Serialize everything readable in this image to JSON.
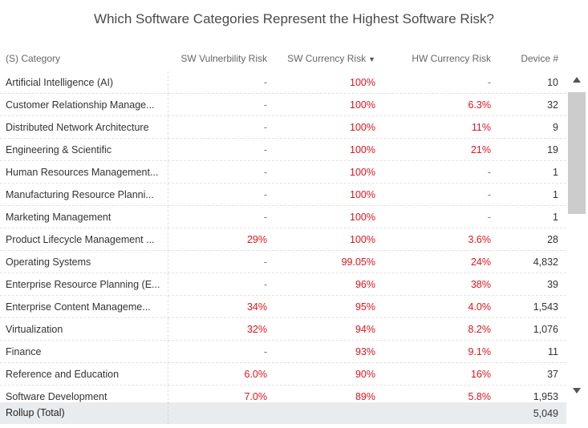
{
  "title": "Which Software Categories Represent the Highest Software Risk?",
  "columns": {
    "category": "(S) Category",
    "sw_vuln": "SW Vulnerbility Risk",
    "sw_currency": "SW Currency Risk",
    "hw_currency": "HW Currency Risk",
    "device": "Device #"
  },
  "rows": [
    {
      "category": "Artificial Intelligence (AI)",
      "sw_vuln": "-",
      "sw_currency": "100%",
      "hw_currency": "-",
      "device": "10"
    },
    {
      "category": "Customer Relationship Manage...",
      "sw_vuln": "-",
      "sw_currency": "100%",
      "hw_currency": "6.3%",
      "device": "32"
    },
    {
      "category": "Distributed Network Architecture",
      "sw_vuln": "-",
      "sw_currency": "100%",
      "hw_currency": "11%",
      "device": "9"
    },
    {
      "category": "Engineering & Scientific",
      "sw_vuln": "-",
      "sw_currency": "100%",
      "hw_currency": "21%",
      "device": "19"
    },
    {
      "category": "Human Resources Management...",
      "sw_vuln": "-",
      "sw_currency": "100%",
      "hw_currency": "-",
      "device": "1"
    },
    {
      "category": "Manufacturing Resource Planni...",
      "sw_vuln": "-",
      "sw_currency": "100%",
      "hw_currency": "-",
      "device": "1"
    },
    {
      "category": "Marketing Management",
      "sw_vuln": "-",
      "sw_currency": "100%",
      "hw_currency": "-",
      "device": "1"
    },
    {
      "category": "Product Lifecycle Management ...",
      "sw_vuln": "29%",
      "sw_currency": "100%",
      "hw_currency": "3.6%",
      "device": "28"
    },
    {
      "category": "Operating Systems",
      "sw_vuln": "-",
      "sw_currency": "99.05%",
      "hw_currency": "24%",
      "device": "4,832"
    },
    {
      "category": "Enterprise Resource Planning (E...",
      "sw_vuln": "-",
      "sw_currency": "96%",
      "hw_currency": "38%",
      "device": "39"
    },
    {
      "category": "Enterprise Content Manageme...",
      "sw_vuln": "34%",
      "sw_currency": "95%",
      "hw_currency": "4.0%",
      "device": "1,543"
    },
    {
      "category": "Virtualization",
      "sw_vuln": "32%",
      "sw_currency": "94%",
      "hw_currency": "8.2%",
      "device": "1,076"
    },
    {
      "category": "Finance",
      "sw_vuln": "-",
      "sw_currency": "93%",
      "hw_currency": "9.1%",
      "device": "11"
    },
    {
      "category": "Reference and Education",
      "sw_vuln": "6.0%",
      "sw_currency": "90%",
      "hw_currency": "16%",
      "device": "37"
    },
    {
      "category": "Software Development",
      "sw_vuln": "7.0%",
      "sw_currency": "89%",
      "hw_currency": "5.8%",
      "device": "1,953"
    }
  ],
  "rollup": {
    "label": "Rollup (Total)",
    "device": "5,049"
  },
  "colors": {
    "risk": "#e0141e",
    "rollup_bg": "#e8ecef"
  }
}
